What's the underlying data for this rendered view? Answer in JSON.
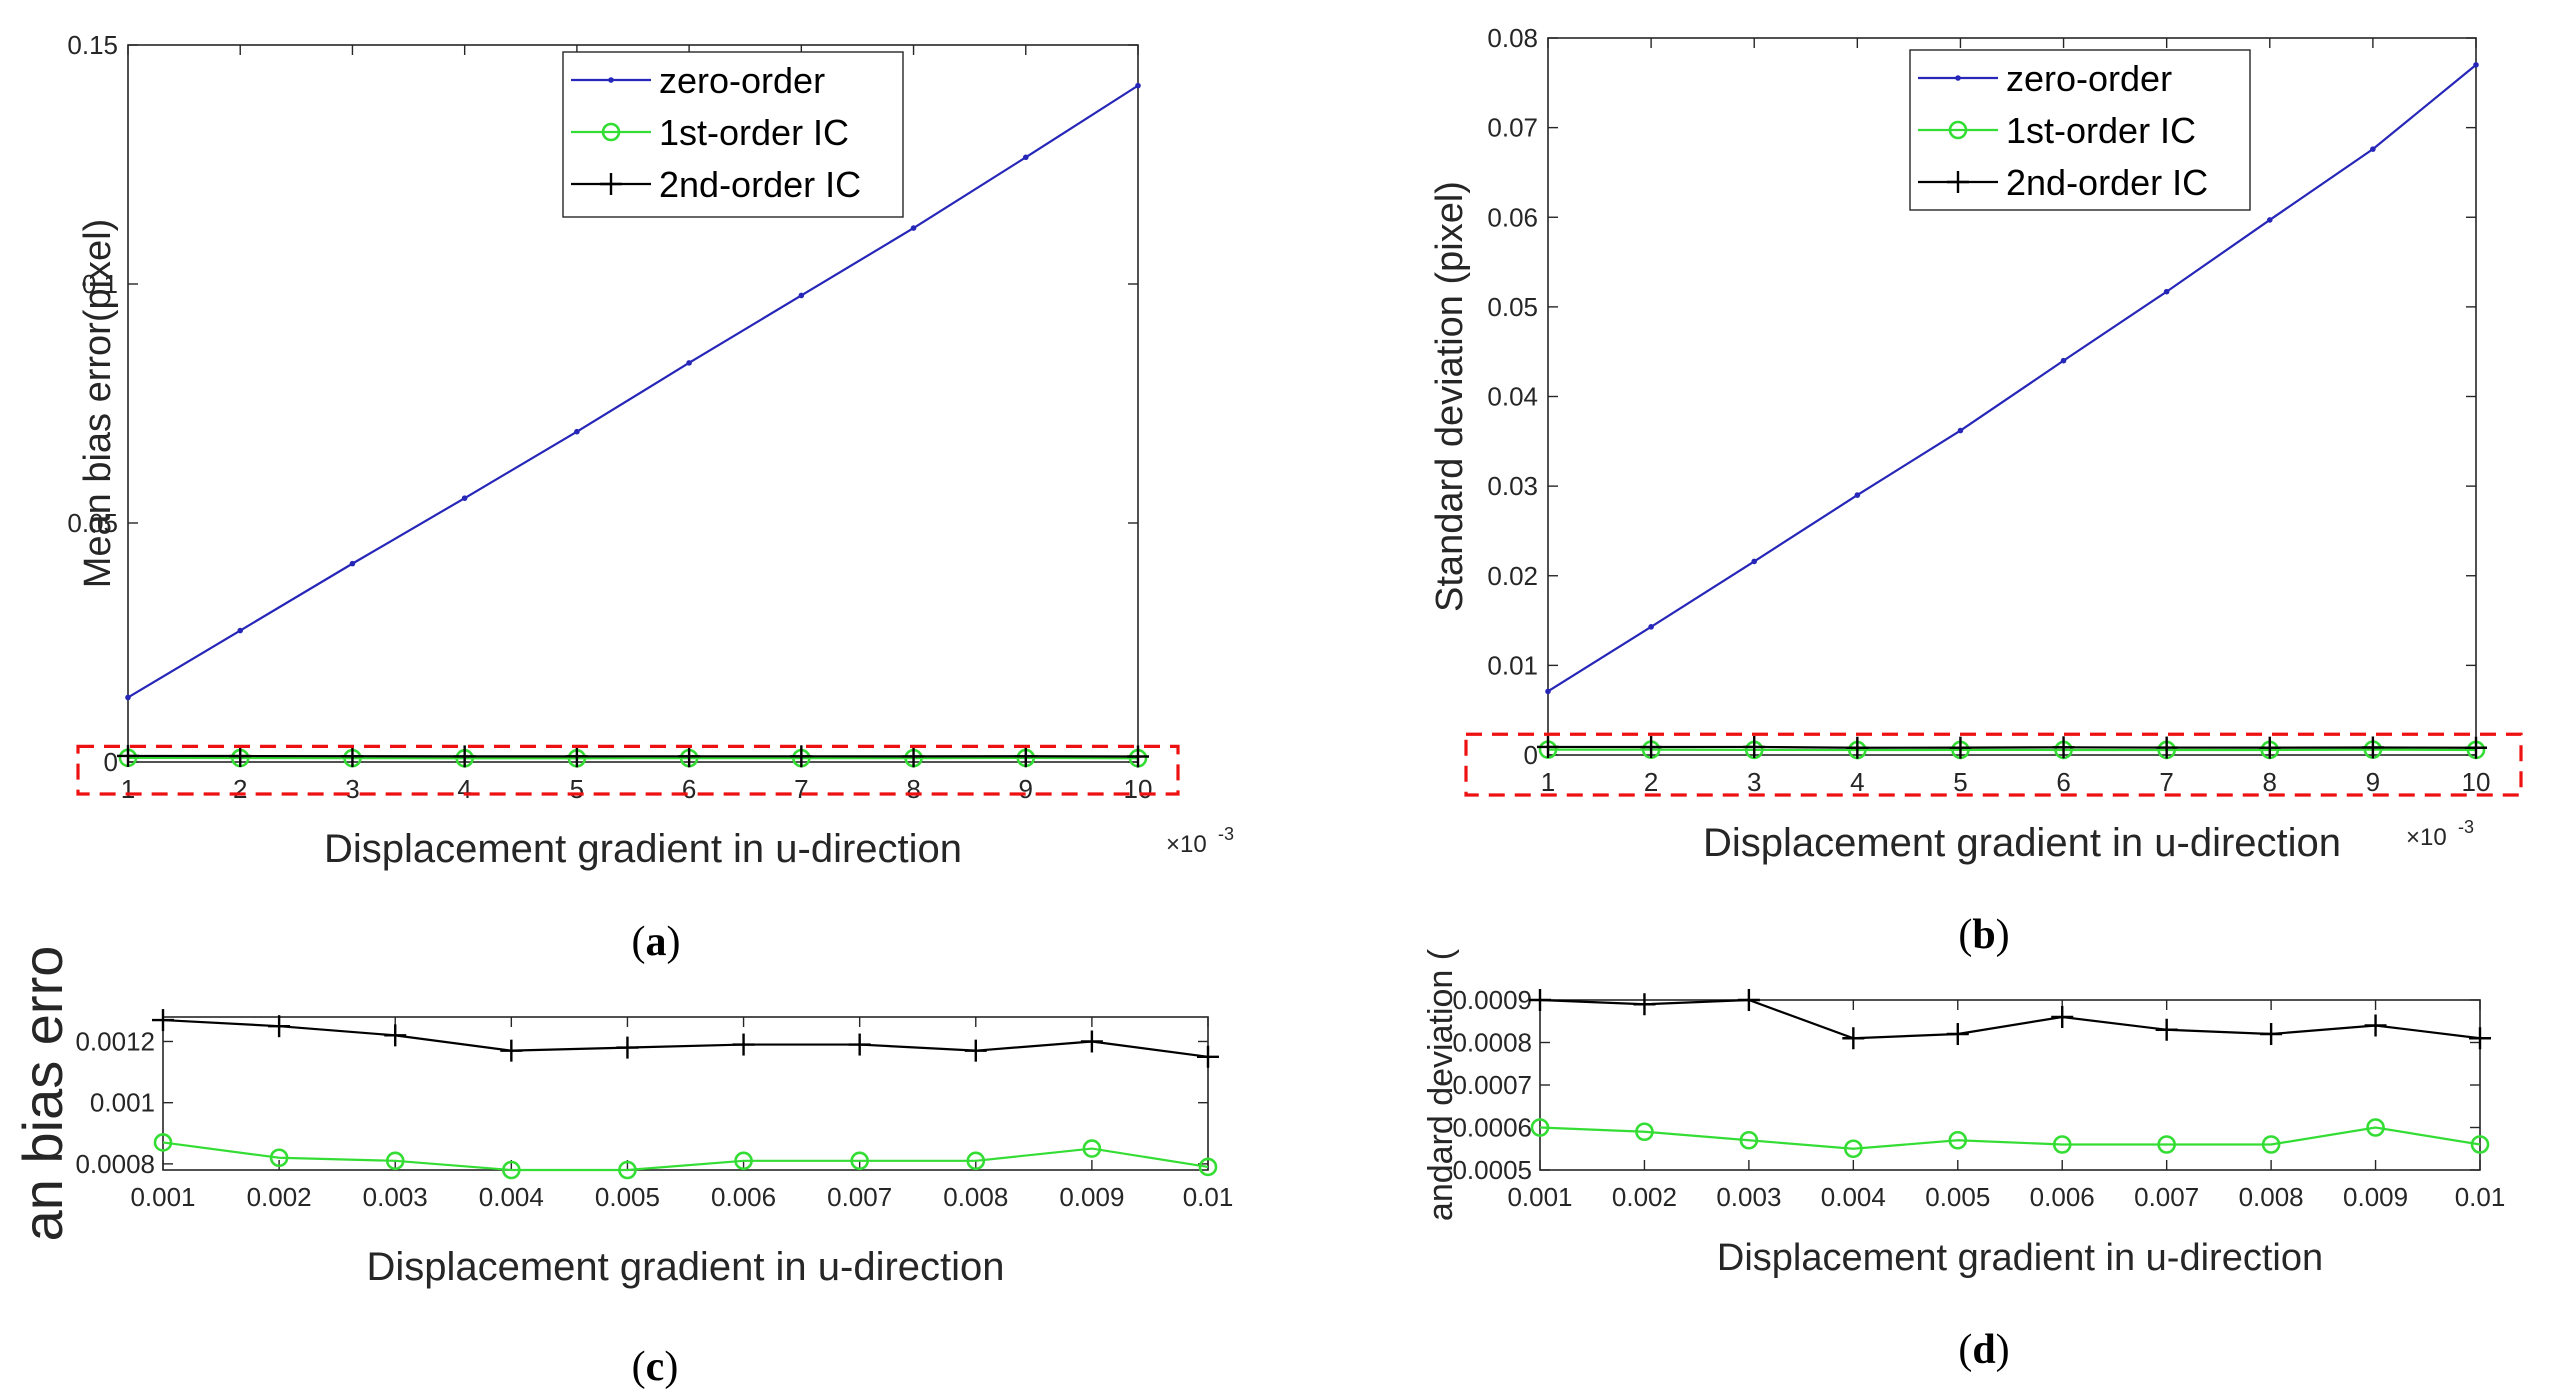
{
  "colors": {
    "zero": "#2626b8",
    "first": "#33dd33",
    "second": "#000000",
    "highlight": "#ee1111",
    "axis": "#262626"
  },
  "chart_data": [
    {
      "id": "a",
      "type": "line",
      "caption": "a",
      "xlabel": "Displacement gradient in u-direction",
      "ylabel": "Mean bias error(pixel)",
      "x_multiplier_base": "×10",
      "x_multiplier_exp": "-3",
      "x": [
        1,
        2,
        3,
        4,
        5,
        6,
        7,
        8,
        9,
        10
      ],
      "xlim": [
        1,
        10
      ],
      "ylim": [
        0,
        0.15
      ],
      "xticks": [
        "1",
        "2",
        "3",
        "4",
        "5",
        "6",
        "7",
        "8",
        "9",
        "10"
      ],
      "yticks": [
        {
          "value": 0,
          "label": "0"
        },
        {
          "value": 0.05,
          "label": "0.05"
        },
        {
          "value": 0.1,
          "label": "0.1"
        },
        {
          "value": 0.15,
          "label": "0.15"
        }
      ],
      "legend_position": "top-right",
      "highlight_box": [
        0,
        0.0016
      ],
      "series": [
        {
          "name": "zero-order",
          "key": "zero",
          "marker": "dot",
          "values": [
            0.0135,
            0.0275,
            0.0415,
            0.0552,
            0.0691,
            0.0835,
            0.0976,
            0.1117,
            0.1265,
            0.1415
          ]
        },
        {
          "name": "1st-order IC",
          "key": "first",
          "marker": "circle",
          "values": [
            0.00087,
            0.00082,
            0.00081,
            0.00078,
            0.00078,
            0.00081,
            0.00081,
            0.00081,
            0.00085,
            0.00079
          ]
        },
        {
          "name": "2nd-order IC",
          "key": "second",
          "marker": "plus",
          "values": [
            0.00127,
            0.00125,
            0.00122,
            0.00117,
            0.00118,
            0.00119,
            0.00119,
            0.00117,
            0.0012,
            0.00115
          ]
        }
      ]
    },
    {
      "id": "b",
      "type": "line",
      "caption": "b",
      "xlabel": "Displacement gradient in u-direction",
      "ylabel": "Standard deviation (pixel)",
      "x_multiplier_base": "×10",
      "x_multiplier_exp": "-3",
      "x": [
        1,
        2,
        3,
        4,
        5,
        6,
        7,
        8,
        9,
        10
      ],
      "xlim": [
        1,
        10
      ],
      "ylim": [
        0,
        0.08
      ],
      "xticks": [
        "1",
        "2",
        "3",
        "4",
        "5",
        "6",
        "7",
        "8",
        "9",
        "10"
      ],
      "yticks": [
        {
          "value": 0,
          "label": "0"
        },
        {
          "value": 0.01,
          "label": "0.01"
        },
        {
          "value": 0.02,
          "label": "0.02"
        },
        {
          "value": 0.03,
          "label": "0.03"
        },
        {
          "value": 0.04,
          "label": "0.04"
        },
        {
          "value": 0.05,
          "label": "0.05"
        },
        {
          "value": 0.06,
          "label": "0.06"
        },
        {
          "value": 0.07,
          "label": "0.07"
        },
        {
          "value": 0.08,
          "label": "0.08"
        }
      ],
      "legend_position": "top-left",
      "highlight_box": [
        0,
        0.0012
      ],
      "series": [
        {
          "name": "zero-order",
          "key": "zero",
          "marker": "dot",
          "values": [
            0.0071,
            0.0143,
            0.0216,
            0.029,
            0.0362,
            0.044,
            0.0517,
            0.0597,
            0.0676,
            0.077
          ]
        },
        {
          "name": "1st-order IC",
          "key": "first",
          "marker": "circle",
          "values": [
            0.0006,
            0.00059,
            0.00057,
            0.00055,
            0.00057,
            0.00056,
            0.00056,
            0.00056,
            0.0006,
            0.00056
          ]
        },
        {
          "name": "2nd-order IC",
          "key": "second",
          "marker": "plus",
          "values": [
            0.0009,
            0.00089,
            0.0009,
            0.00081,
            0.00082,
            0.00086,
            0.00083,
            0.00082,
            0.00084,
            0.00081
          ]
        }
      ]
    },
    {
      "id": "c",
      "type": "line",
      "caption": "c",
      "xlabel": "Displacement gradient in u-direction",
      "ylabel": "an bias erro",
      "x": [
        0.001,
        0.002,
        0.003,
        0.004,
        0.005,
        0.006,
        0.007,
        0.008,
        0.009,
        0.01
      ],
      "xlim": [
        0.001,
        0.01
      ],
      "ylim": [
        0.00078,
        0.00128
      ],
      "xticks": [
        "0.001",
        "0.002",
        "0.003",
        "0.004",
        "0.005",
        "0.006",
        "0.007",
        "0.008",
        "0.009",
        "0.01"
      ],
      "yticks": [
        {
          "value": 0.0008,
          "label": "0.0008"
        },
        {
          "value": 0.001,
          "label": "0.001"
        },
        {
          "value": 0.0012,
          "label": "0.0012"
        }
      ],
      "series": [
        {
          "name": "1st-order IC",
          "key": "first",
          "marker": "circle",
          "values": [
            0.00087,
            0.00082,
            0.00081,
            0.00078,
            0.00078,
            0.00081,
            0.00081,
            0.00081,
            0.00085,
            0.00079
          ]
        },
        {
          "name": "2nd-order IC",
          "key": "second",
          "marker": "plus",
          "values": [
            0.00127,
            0.00125,
            0.00122,
            0.00117,
            0.00118,
            0.00119,
            0.00119,
            0.00117,
            0.0012,
            0.00115
          ]
        }
      ]
    },
    {
      "id": "d",
      "type": "line",
      "caption": "d",
      "xlabel": "Displacement gradient in u-direction",
      "ylabel": "andard deviation (",
      "x": [
        0.001,
        0.002,
        0.003,
        0.004,
        0.005,
        0.006,
        0.007,
        0.008,
        0.009,
        0.01
      ],
      "xlim": [
        0.001,
        0.01
      ],
      "ylim": [
        0.0005,
        0.0009
      ],
      "xticks": [
        "0.001",
        "0.002",
        "0.003",
        "0.004",
        "0.005",
        "0.006",
        "0.007",
        "0.008",
        "0.009",
        "0.01"
      ],
      "yticks": [
        {
          "value": 0.0005,
          "label": "0.0005"
        },
        {
          "value": 0.0006,
          "label": "0.0006"
        },
        {
          "value": 0.0007,
          "label": "0.0007"
        },
        {
          "value": 0.0008,
          "label": "0.0008"
        },
        {
          "value": 0.0009,
          "label": "0.0009"
        }
      ],
      "series": [
        {
          "name": "1st-order IC",
          "key": "first",
          "marker": "circle",
          "values": [
            0.0006,
            0.00059,
            0.00057,
            0.00055,
            0.00057,
            0.00056,
            0.00056,
            0.00056,
            0.0006,
            0.00056
          ]
        },
        {
          "name": "2nd-order IC",
          "key": "second",
          "marker": "plus",
          "values": [
            0.0009,
            0.00089,
            0.0009,
            0.00081,
            0.00082,
            0.00086,
            0.00083,
            0.00082,
            0.00084,
            0.00081
          ]
        }
      ]
    }
  ]
}
